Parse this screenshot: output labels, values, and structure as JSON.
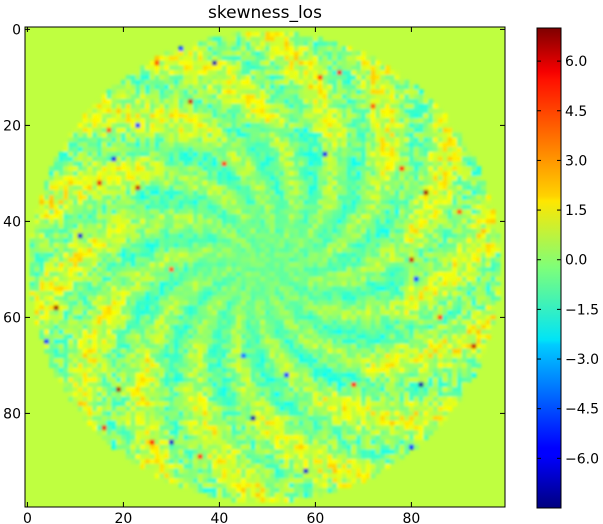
{
  "chart_data": {
    "type": "heatmap",
    "title": "skewness_los",
    "xlabel": "",
    "ylabel": "",
    "grid": false,
    "colormap": "jet",
    "image_extent": {
      "x": [
        -0.5,
        99.5
      ],
      "y": [
        99.5,
        -0.5
      ]
    },
    "x_ticks": [
      0,
      20,
      40,
      60,
      80
    ],
    "y_ticks": [
      0,
      20,
      40,
      60,
      80
    ],
    "colorbar": {
      "vmin": -7.5,
      "vmax": 7.0,
      "ticks": [
        6.0,
        4.5,
        3.0,
        1.5,
        0.0,
        -1.5,
        -3.0,
        -4.5,
        -6.0
      ],
      "tick_labels": [
        "6.0",
        "4.5",
        "3.0",
        "1.5",
        "0.0",
        "−1.5",
        "−3.0",
        "−4.5",
        "−6.0"
      ]
    },
    "background_value": 0.65,
    "disk": {
      "center": [
        49.5,
        49.5
      ],
      "radius": 49
    },
    "hotspots": [
      {
        "x": 39,
        "y": 7,
        "v": -7.0
      },
      {
        "x": 34,
        "y": 15,
        "v": 6.0
      },
      {
        "x": 65,
        "y": 9,
        "v": 5.5
      },
      {
        "x": 61,
        "y": 10,
        "v": 4.5
      },
      {
        "x": 27,
        "y": 7,
        "v": 4.0
      },
      {
        "x": 32,
        "y": 4,
        "v": -4.5
      },
      {
        "x": 17,
        "y": 21,
        "v": 4.0
      },
      {
        "x": 23,
        "y": 20,
        "v": -5.0
      },
      {
        "x": 18,
        "y": 27,
        "v": -6.0
      },
      {
        "x": 23,
        "y": 33,
        "v": 6.0
      },
      {
        "x": 15,
        "y": 32,
        "v": 5.5
      },
      {
        "x": 11,
        "y": 43,
        "v": -6.5
      },
      {
        "x": 0,
        "y": 56,
        "v": -6.0
      },
      {
        "x": 6,
        "y": 58,
        "v": 6.5
      },
      {
        "x": 4,
        "y": 65,
        "v": -5.0
      },
      {
        "x": 19,
        "y": 75,
        "v": 6.5
      },
      {
        "x": 16,
        "y": 83,
        "v": 5.5
      },
      {
        "x": 30,
        "y": 86,
        "v": -6.5
      },
      {
        "x": 36,
        "y": 89,
        "v": 5.0
      },
      {
        "x": 47,
        "y": 81,
        "v": -7.0
      },
      {
        "x": 58,
        "y": 92,
        "v": -6.5
      },
      {
        "x": 54,
        "y": 72,
        "v": -5.0
      },
      {
        "x": 62,
        "y": 26,
        "v": -6.0
      },
      {
        "x": 83,
        "y": 34,
        "v": 6.5
      },
      {
        "x": 78,
        "y": 29,
        "v": 5.0
      },
      {
        "x": 92,
        "y": 23,
        "v": -6.0
      },
      {
        "x": 80,
        "y": 48,
        "v": 6.0
      },
      {
        "x": 81,
        "y": 52,
        "v": -5.0
      },
      {
        "x": 82,
        "y": 74,
        "v": -7.0
      },
      {
        "x": 93,
        "y": 66,
        "v": 6.0
      },
      {
        "x": 80,
        "y": 87,
        "v": -5.0
      },
      {
        "x": 41,
        "y": 28,
        "v": 4.5
      },
      {
        "x": 68,
        "y": 74,
        "v": 5.0
      },
      {
        "x": 90,
        "y": 38,
        "v": 4.0
      },
      {
        "x": 30,
        "y": 50,
        "v": 4.0
      },
      {
        "x": 72,
        "y": 16,
        "v": 4.0
      },
      {
        "x": 26,
        "y": 86,
        "v": 5.0
      },
      {
        "x": 86,
        "y": 60,
        "v": 4.5
      },
      {
        "x": 45,
        "y": 68,
        "v": -4.0
      }
    ]
  }
}
